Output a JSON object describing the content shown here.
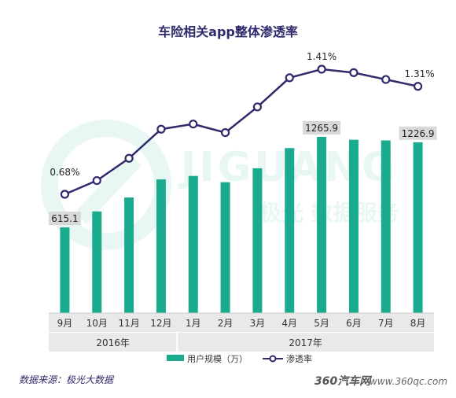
{
  "chart_data": {
    "type": "bar+line",
    "title": "车险相关app整体渗透率",
    "categories": [
      "9月",
      "10月",
      "11月",
      "12月",
      "1月",
      "2月",
      "3月",
      "4月",
      "5月",
      "6月",
      "7月",
      "8月"
    ],
    "year_groups": [
      {
        "label": "2016年",
        "span": 4
      },
      {
        "label": "2017年",
        "span": 8
      }
    ],
    "series": [
      {
        "name": "用户规模（万）",
        "type": "bar",
        "color": "#1aab8f",
        "values": [
          615.1,
          730,
          830,
          960,
          985,
          940,
          1040,
          1185,
          1265.9,
          1245,
          1240,
          1226.9
        ]
      },
      {
        "name": "渗透率",
        "type": "line",
        "color": "#2f2a6b",
        "values": [
          0.68,
          0.76,
          0.89,
          1.06,
          1.09,
          1.04,
          1.19,
          1.36,
          1.41,
          1.39,
          1.35,
          1.31
        ]
      }
    ],
    "data_labels": [
      {
        "series": 0,
        "index": 0,
        "text": "615.1"
      },
      {
        "series": 0,
        "index": 8,
        "text": "1265.9"
      },
      {
        "series": 0,
        "index": 11,
        "text": "1226.9"
      },
      {
        "series": 1,
        "index": 0,
        "text": "0.68%"
      },
      {
        "series": 1,
        "index": 8,
        "text": "1.41%"
      },
      {
        "series": 1,
        "index": 11,
        "text": "1.31%"
      }
    ],
    "legend_position": "bottom-center",
    "grid": false
  },
  "footer": {
    "source": "数据来源：极光大数据",
    "watermark": "www.360qc.com",
    "watermark_logo": "360汽车网"
  },
  "background_watermark": {
    "latin": "JIGUANG",
    "chinese": "极光 数据服务"
  }
}
